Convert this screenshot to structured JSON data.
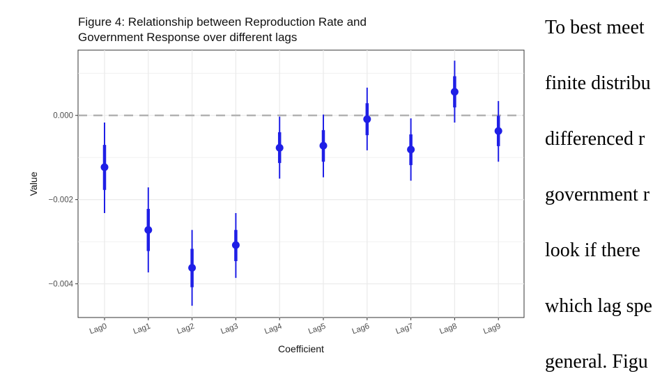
{
  "chart_data": {
    "type": "scatter",
    "title_lines": [
      "Figure 4: Relationship between Reproduction Rate and",
      "Government Response over different lags"
    ],
    "xlabel": "Coefficient",
    "ylabel": "Value",
    "categories": [
      "Lag0",
      "Lag1",
      "Lag2",
      "Lag3",
      "Lag4",
      "Lag5",
      "Lag6",
      "Lag7",
      "Lag8",
      "Lag9"
    ],
    "estimates": [
      -0.00123,
      -0.00272,
      -0.00362,
      -0.00308,
      -0.00077,
      -0.00072,
      -9e-05,
      -0.00081,
      0.00056,
      -0.00037
    ],
    "inner_interval_low": [
      -0.00177,
      -0.00322,
      -0.00408,
      -0.00346,
      -0.00113,
      -0.0011,
      -0.00047,
      -0.00118,
      0.00019,
      -0.00073
    ],
    "inner_interval_high": [
      -0.0007,
      -0.00222,
      -0.00317,
      -0.00272,
      -0.0004,
      -0.00035,
      0.00029,
      -0.00045,
      0.00093,
      -1e-05
    ],
    "outer_interval_low": [
      -0.00232,
      -0.00373,
      -0.00452,
      -0.00386,
      -0.0015,
      -0.00147,
      -0.00083,
      -0.00155,
      -0.00017,
      -0.0011
    ],
    "outer_interval_high": [
      -0.00017,
      -0.00171,
      -0.00272,
      -0.00232,
      -3e-05,
      2e-05,
      0.00066,
      -7e-05,
      0.0013,
      0.00034
    ],
    "yticks": [
      0.0,
      -0.002,
      -0.004
    ],
    "ytick_labels": [
      "0.000",
      "−0.002",
      "−0.004"
    ],
    "ylim": [
      -0.0048,
      0.00155
    ],
    "reference_line": 0,
    "grid": true,
    "colors": {
      "marker": "#1f1fe6",
      "reference_line": "#b3b3b3",
      "grid": "#ebebeb",
      "panel_border": "#333333"
    }
  },
  "body_text": {
    "lines": [
      "To best meet",
      "finite distribu",
      "differenced r",
      "government r",
      "look if there",
      "which lag spe",
      "general. Figu"
    ]
  }
}
